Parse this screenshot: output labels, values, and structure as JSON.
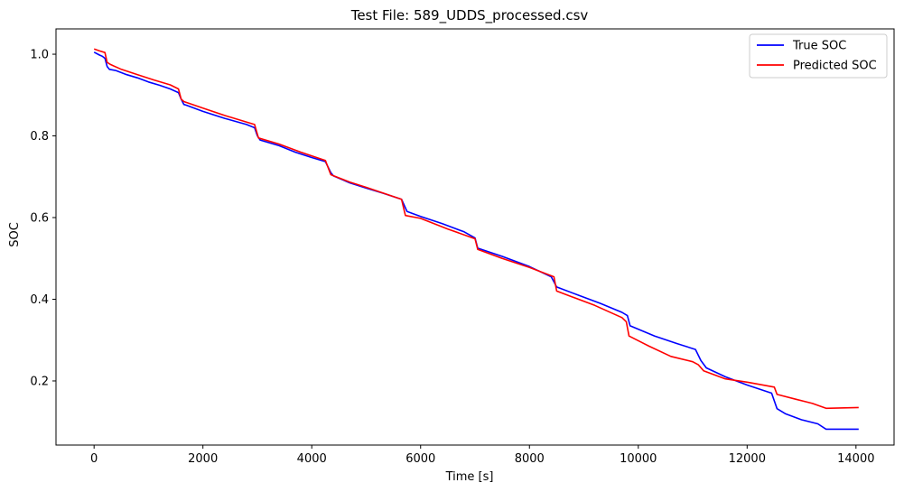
{
  "chart_data": {
    "type": "line",
    "title": "Test File: 589_UDDS_processed.csv",
    "xlabel": "Time [s]",
    "ylabel": "SOC",
    "xlim": [
      -700,
      14700
    ],
    "ylim": [
      0.043,
      1.062
    ],
    "xticks": [
      0,
      2000,
      4000,
      6000,
      8000,
      10000,
      12000,
      14000
    ],
    "xtick_labels": [
      "0",
      "2000",
      "4000",
      "6000",
      "8000",
      "10000",
      "12000",
      "14000"
    ],
    "yticks": [
      0.2,
      0.4,
      0.6,
      0.8,
      1.0
    ],
    "ytick_labels": [
      "0.2",
      "0.4",
      "0.6",
      "0.8",
      "1.0"
    ],
    "grid": false,
    "legend": "top-right",
    "series": [
      {
        "name": "True SOC",
        "color": "#0000ff",
        "points": [
          [
            0,
            1.005
          ],
          [
            100,
            0.998
          ],
          [
            150,
            0.995
          ],
          [
            200,
            0.99
          ],
          [
            240,
            0.97
          ],
          [
            280,
            0.963
          ],
          [
            400,
            0.96
          ],
          [
            600,
            0.95
          ],
          [
            800,
            0.942
          ],
          [
            1000,
            0.932
          ],
          [
            1200,
            0.924
          ],
          [
            1400,
            0.915
          ],
          [
            1550,
            0.906
          ],
          [
            1600,
            0.89
          ],
          [
            1650,
            0.877
          ],
          [
            1700,
            0.875
          ],
          [
            2000,
            0.86
          ],
          [
            2400,
            0.843
          ],
          [
            2800,
            0.828
          ],
          [
            2950,
            0.82
          ],
          [
            3000,
            0.8
          ],
          [
            3050,
            0.79
          ],
          [
            3400,
            0.776
          ],
          [
            3700,
            0.76
          ],
          [
            4000,
            0.747
          ],
          [
            4250,
            0.737
          ],
          [
            4350,
            0.71
          ],
          [
            4400,
            0.702
          ],
          [
            4700,
            0.685
          ],
          [
            5000,
            0.672
          ],
          [
            5300,
            0.66
          ],
          [
            5650,
            0.645
          ],
          [
            5750,
            0.615
          ],
          [
            6000,
            0.603
          ],
          [
            6400,
            0.585
          ],
          [
            6800,
            0.565
          ],
          [
            7000,
            0.55
          ],
          [
            7050,
            0.525
          ],
          [
            7500,
            0.505
          ],
          [
            8000,
            0.48
          ],
          [
            8400,
            0.455
          ],
          [
            8500,
            0.43
          ],
          [
            8900,
            0.41
          ],
          [
            9300,
            0.39
          ],
          [
            9700,
            0.368
          ],
          [
            9800,
            0.36
          ],
          [
            9850,
            0.335
          ],
          [
            10300,
            0.31
          ],
          [
            10700,
            0.292
          ],
          [
            11050,
            0.277
          ],
          [
            11150,
            0.25
          ],
          [
            11250,
            0.232
          ],
          [
            11600,
            0.21
          ],
          [
            12000,
            0.19
          ],
          [
            12450,
            0.17
          ],
          [
            12550,
            0.132
          ],
          [
            12700,
            0.12
          ],
          [
            13000,
            0.105
          ],
          [
            13300,
            0.095
          ],
          [
            13450,
            0.082
          ],
          [
            14050,
            0.082
          ]
        ]
      },
      {
        "name": "Predicted SOC",
        "color": "#ff0000",
        "points": [
          [
            0,
            1.013
          ],
          [
            100,
            1.008
          ],
          [
            200,
            1.004
          ],
          [
            240,
            0.98
          ],
          [
            300,
            0.975
          ],
          [
            500,
            0.963
          ],
          [
            800,
            0.95
          ],
          [
            1100,
            0.937
          ],
          [
            1400,
            0.925
          ],
          [
            1550,
            0.915
          ],
          [
            1600,
            0.89
          ],
          [
            1650,
            0.884
          ],
          [
            2000,
            0.868
          ],
          [
            2400,
            0.85
          ],
          [
            2900,
            0.83
          ],
          [
            2950,
            0.828
          ],
          [
            3020,
            0.795
          ],
          [
            3400,
            0.78
          ],
          [
            3800,
            0.76
          ],
          [
            4250,
            0.74
          ],
          [
            4350,
            0.705
          ],
          [
            4700,
            0.687
          ],
          [
            5000,
            0.674
          ],
          [
            5650,
            0.645
          ],
          [
            5720,
            0.605
          ],
          [
            6000,
            0.598
          ],
          [
            6500,
            0.572
          ],
          [
            7000,
            0.548
          ],
          [
            7050,
            0.522
          ],
          [
            7500,
            0.5
          ],
          [
            8000,
            0.478
          ],
          [
            8450,
            0.455
          ],
          [
            8500,
            0.42
          ],
          [
            8800,
            0.405
          ],
          [
            9200,
            0.385
          ],
          [
            9700,
            0.355
          ],
          [
            9780,
            0.345
          ],
          [
            9830,
            0.31
          ],
          [
            10200,
            0.285
          ],
          [
            10600,
            0.26
          ],
          [
            11000,
            0.247
          ],
          [
            11100,
            0.24
          ],
          [
            11200,
            0.225
          ],
          [
            11600,
            0.205
          ],
          [
            12000,
            0.197
          ],
          [
            12500,
            0.185
          ],
          [
            12550,
            0.167
          ],
          [
            12900,
            0.155
          ],
          [
            13200,
            0.145
          ],
          [
            13450,
            0.133
          ],
          [
            14050,
            0.135
          ]
        ]
      }
    ]
  }
}
